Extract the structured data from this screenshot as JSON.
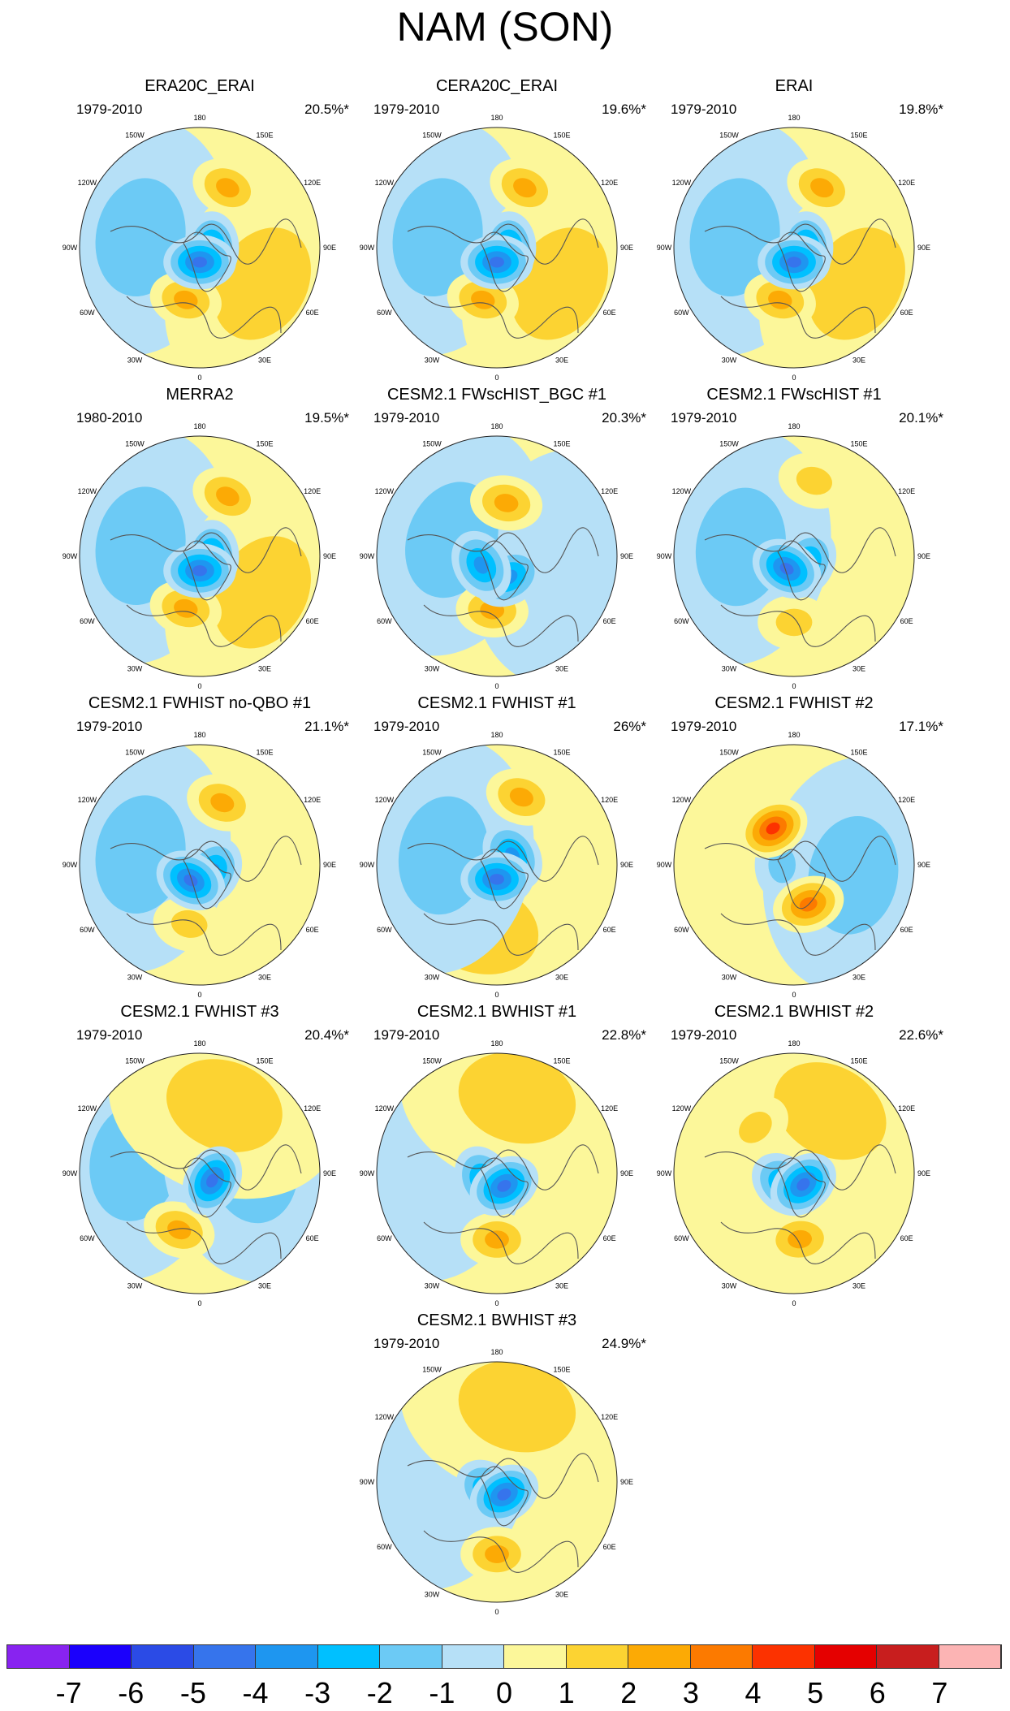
{
  "figure_title": "NAM (SON)",
  "longitude_labels": [
    "180",
    "150E",
    "120E",
    "90E",
    "60E",
    "30E",
    "0",
    "30W",
    "60W",
    "90W",
    "120W",
    "150W"
  ],
  "panels": [
    {
      "title": "ERA20C_ERAI",
      "period": "1979-2010",
      "variance": "20.5%*",
      "features": [
        {
          "lon": 0,
          "r": 0.12,
          "v": -4.5
        },
        {
          "lon": 90,
          "r": 0.1,
          "v": -4
        },
        {
          "lon": 155,
          "r": 0.55,
          "v": 2.3
        },
        {
          "lon": -15,
          "r": 0.45,
          "v": 2.8
        },
        {
          "lon": -100,
          "r": 0.5,
          "v": -1.2
        },
        {
          "lon": 60,
          "r": 0.6,
          "v": 1.2
        }
      ]
    },
    {
      "title": "CERA20C_ERAI",
      "period": "1979-2010",
      "variance": "19.6%*",
      "features": [
        {
          "lon": 0,
          "r": 0.12,
          "v": -4.3
        },
        {
          "lon": 90,
          "r": 0.1,
          "v": -3.8
        },
        {
          "lon": 155,
          "r": 0.55,
          "v": 2.2
        },
        {
          "lon": -15,
          "r": 0.45,
          "v": 2.6
        },
        {
          "lon": -100,
          "r": 0.5,
          "v": -1.2
        },
        {
          "lon": 60,
          "r": 0.6,
          "v": 1.2
        }
      ]
    },
    {
      "title": "ERAI",
      "period": "1979-2010",
      "variance": "19.8%*",
      "features": [
        {
          "lon": 0,
          "r": 0.12,
          "v": -4.4
        },
        {
          "lon": 90,
          "r": 0.1,
          "v": -3.9
        },
        {
          "lon": 155,
          "r": 0.55,
          "v": 2.2
        },
        {
          "lon": -15,
          "r": 0.45,
          "v": 2.7
        },
        {
          "lon": -100,
          "r": 0.5,
          "v": -1.2
        },
        {
          "lon": 60,
          "r": 0.6,
          "v": 1.2
        }
      ]
    },
    {
      "title": "MERRA2",
      "period": "1980-2010",
      "variance": "19.5%*",
      "features": [
        {
          "lon": 0,
          "r": 0.12,
          "v": -4.2
        },
        {
          "lon": 90,
          "r": 0.1,
          "v": -3.8
        },
        {
          "lon": 155,
          "r": 0.55,
          "v": 2.3
        },
        {
          "lon": -15,
          "r": 0.45,
          "v": 2.7
        },
        {
          "lon": -100,
          "r": 0.5,
          "v": -1.2
        },
        {
          "lon": 60,
          "r": 0.6,
          "v": 1.2
        }
      ]
    },
    {
      "title": "CESM2.1 FWscHIST_BGC #1",
      "period": "1979-2010",
      "variance": "20.3%*",
      "features": [
        {
          "lon": -60,
          "r": 0.15,
          "v": -4
        },
        {
          "lon": 30,
          "r": 0.2,
          "v": -3.5
        },
        {
          "lon": 170,
          "r": 0.45,
          "v": 3
        },
        {
          "lon": -5,
          "r": 0.45,
          "v": 2.2
        },
        {
          "lon": -110,
          "r": 0.4,
          "v": -1.3
        },
        {
          "lon": 80,
          "r": 0.55,
          "v": -1
        }
      ]
    },
    {
      "title": "CESM2.1 FWscHIST #1",
      "period": "1979-2010",
      "variance": "20.1%*",
      "features": [
        {
          "lon": -30,
          "r": 0.12,
          "v": -4.5
        },
        {
          "lon": 60,
          "r": 0.12,
          "v": -3.5
        },
        {
          "lon": 165,
          "r": 0.65,
          "v": 2
        },
        {
          "lon": 0,
          "r": 0.55,
          "v": 2
        },
        {
          "lon": -100,
          "r": 0.45,
          "v": -1.5
        }
      ]
    },
    {
      "title": "CESM2.1 FWHIST no-QBO #1",
      "period": "1979-2010",
      "variance": "21.1%*",
      "features": [
        {
          "lon": -30,
          "r": 0.15,
          "v": -4.5
        },
        {
          "lon": 60,
          "r": 0.12,
          "v": -3.5
        },
        {
          "lon": 160,
          "r": 0.55,
          "v": 3
        },
        {
          "lon": -10,
          "r": 0.5,
          "v": 2
        },
        {
          "lon": -100,
          "r": 0.5,
          "v": -1.3
        }
      ]
    },
    {
      "title": "CESM2.1 FWHIST #1",
      "period": "1979-2010",
      "variance": "26%*",
      "features": [
        {
          "lon": 0,
          "r": 0.12,
          "v": -4.5
        },
        {
          "lon": 120,
          "r": 0.15,
          "v": -4
        },
        {
          "lon": 160,
          "r": 0.6,
          "v": 2.8
        },
        {
          "lon": -15,
          "r": 0.55,
          "v": 1.5
        },
        {
          "lon": -100,
          "r": 0.45,
          "v": -1.5
        }
      ]
    },
    {
      "title": "CESM2.1 FWHIST #2",
      "period": "1979-2010",
      "variance": "17.1%*",
      "features": [
        {
          "lon": -150,
          "r": 0.35,
          "v": 4.2
        },
        {
          "lon": 20,
          "r": 0.35,
          "v": 4
        },
        {
          "lon": -90,
          "r": 0.1,
          "v": -2
        },
        {
          "lon": 80,
          "r": 0.5,
          "v": -1.3
        }
      ]
    },
    {
      "title": "CESM2.1 FWHIST #3",
      "period": "1979-2010",
      "variance": "20.4%*",
      "features": [
        {
          "lon": 60,
          "r": 0.12,
          "v": -4.5
        },
        {
          "lon": -20,
          "r": 0.5,
          "v": 2.5
        },
        {
          "lon": 160,
          "r": 0.6,
          "v": 1.5
        },
        {
          "lon": -100,
          "r": 0.55,
          "v": -1.2
        },
        {
          "lon": 100,
          "r": 0.45,
          "v": -1.2
        }
      ]
    },
    {
      "title": "CESM2.1 BWHIST #1",
      "period": "1979-2010",
      "variance": "22.8%*",
      "features": [
        {
          "lon": 30,
          "r": 0.12,
          "v": -4.6
        },
        {
          "lon": -60,
          "r": 0.12,
          "v": -3.8
        },
        {
          "lon": 0,
          "r": 0.55,
          "v": 2.3
        },
        {
          "lon": 165,
          "r": 0.65,
          "v": 1.5
        },
        {
          "lon": -100,
          "r": 0.5,
          "v": -1
        }
      ]
    },
    {
      "title": "CESM2.1 BWHIST #2",
      "period": "1979-2010",
      "variance": "22.6%*",
      "features": [
        {
          "lon": 40,
          "r": 0.12,
          "v": -4.6
        },
        {
          "lon": -40,
          "r": 0.12,
          "v": -3.5
        },
        {
          "lon": 5,
          "r": 0.55,
          "v": 2.5
        },
        {
          "lon": -140,
          "r": 0.5,
          "v": 2
        },
        {
          "lon": 150,
          "r": 0.6,
          "v": 1.2
        }
      ]
    },
    {
      "title": "CESM2.1 BWHIST #3",
      "period": "1979-2010",
      "variance": "24.9%*",
      "features": [
        {
          "lon": 30,
          "r": 0.12,
          "v": -4.8
        },
        {
          "lon": -40,
          "r": 0.1,
          "v": -4
        },
        {
          "lon": 0,
          "r": 0.6,
          "v": 2.3
        },
        {
          "lon": 165,
          "r": 0.65,
          "v": 1.2
        },
        {
          "lon": -100,
          "r": 0.5,
          "v": -1
        }
      ]
    }
  ],
  "colorbar": {
    "levels": [
      "-7",
      "-6",
      "-5",
      "-4",
      "-3",
      "-2",
      "-1",
      "0",
      "1",
      "2",
      "3",
      "4",
      "5",
      "6",
      "7"
    ],
    "colors": [
      "#8823f0",
      "#1b00fc",
      "#2b4be6",
      "#3674ec",
      "#1e96f0",
      "#00c0ff",
      "#6ccaf5",
      "#b6e0f7",
      "#fcf79a",
      "#fcd332",
      "#fcaa05",
      "#fc7a00",
      "#fc3200",
      "#e50000",
      "#c81e1e",
      "#fcb4b4"
    ]
  }
}
